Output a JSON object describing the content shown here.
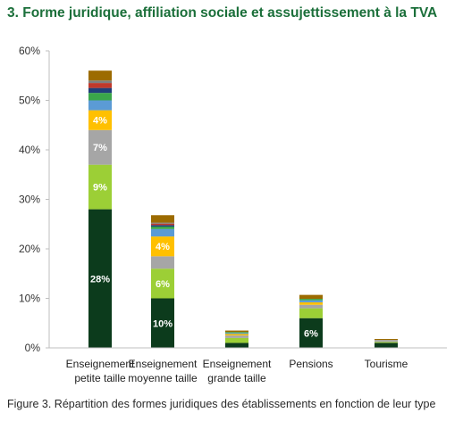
{
  "chart_data": {
    "type": "bar",
    "stacked": true,
    "title": "3. Forme juridique, affiliation sociale et assujettissement à la TVA",
    "caption": "Figure 3. Répartition des formes juridiques des établissements en fonction de leur type",
    "categories": [
      [
        "Enseignement",
        "petite taille"
      ],
      [
        "Enseignement",
        "moyenne taille"
      ],
      [
        "Enseignement",
        "grande taille"
      ],
      [
        "Pensions"
      ],
      [
        "Tourisme"
      ]
    ],
    "ylim": [
      0,
      60
    ],
    "yticks": [
      0,
      10,
      20,
      30,
      40,
      50,
      60
    ],
    "ytick_labels": [
      "0%",
      "10%",
      "20%",
      "30%",
      "40%",
      "50%",
      "60%"
    ],
    "grid": false,
    "legend": "none",
    "series": [
      {
        "color": "#0c3b1c",
        "values": [
          28,
          10,
          1,
          6,
          1
        ],
        "labels": [
          "28%",
          "10%",
          "",
          "6%",
          ""
        ]
      },
      {
        "color": "#9ccf36",
        "values": [
          9,
          6,
          1,
          2,
          0.2
        ],
        "labels": [
          "9%",
          "6%",
          "",
          "",
          ""
        ]
      },
      {
        "color": "#a6a6a6",
        "values": [
          7,
          2.5,
          0.5,
          0.7,
          0.4
        ],
        "labels": [
          "7%",
          "",
          "",
          "",
          ""
        ]
      },
      {
        "color": "#ffc000",
        "values": [
          4,
          4,
          0.3,
          0.5,
          0
        ],
        "labels": [
          "4%",
          "4%",
          "",
          "",
          ""
        ]
      },
      {
        "color": "#5b9bd5",
        "values": [
          2,
          1.5,
          0.2,
          0.4,
          0
        ],
        "labels": [
          "",
          "",
          "",
          "",
          ""
        ]
      },
      {
        "color": "#3aa64a",
        "values": [
          1.5,
          0.5,
          0.2,
          0.3,
          0
        ],
        "labels": [
          "",
          "",
          "",
          "",
          ""
        ]
      },
      {
        "color": "#1f3f7a",
        "values": [
          1,
          0.3,
          0,
          0,
          0
        ],
        "labels": [
          "",
          "",
          "",
          "",
          ""
        ]
      },
      {
        "color": "#c0392b",
        "values": [
          1,
          0.3,
          0,
          0,
          0
        ],
        "labels": [
          "",
          "",
          "",
          "",
          ""
        ]
      },
      {
        "color": "#7f7f7f",
        "values": [
          0.5,
          0.2,
          0,
          0,
          0
        ],
        "labels": [
          "",
          "",
          "",
          "",
          ""
        ]
      },
      {
        "color": "#9c6b00",
        "values": [
          2,
          1.5,
          0.3,
          0.8,
          0.2
        ],
        "labels": [
          "",
          "",
          "",
          "",
          ""
        ]
      }
    ]
  }
}
